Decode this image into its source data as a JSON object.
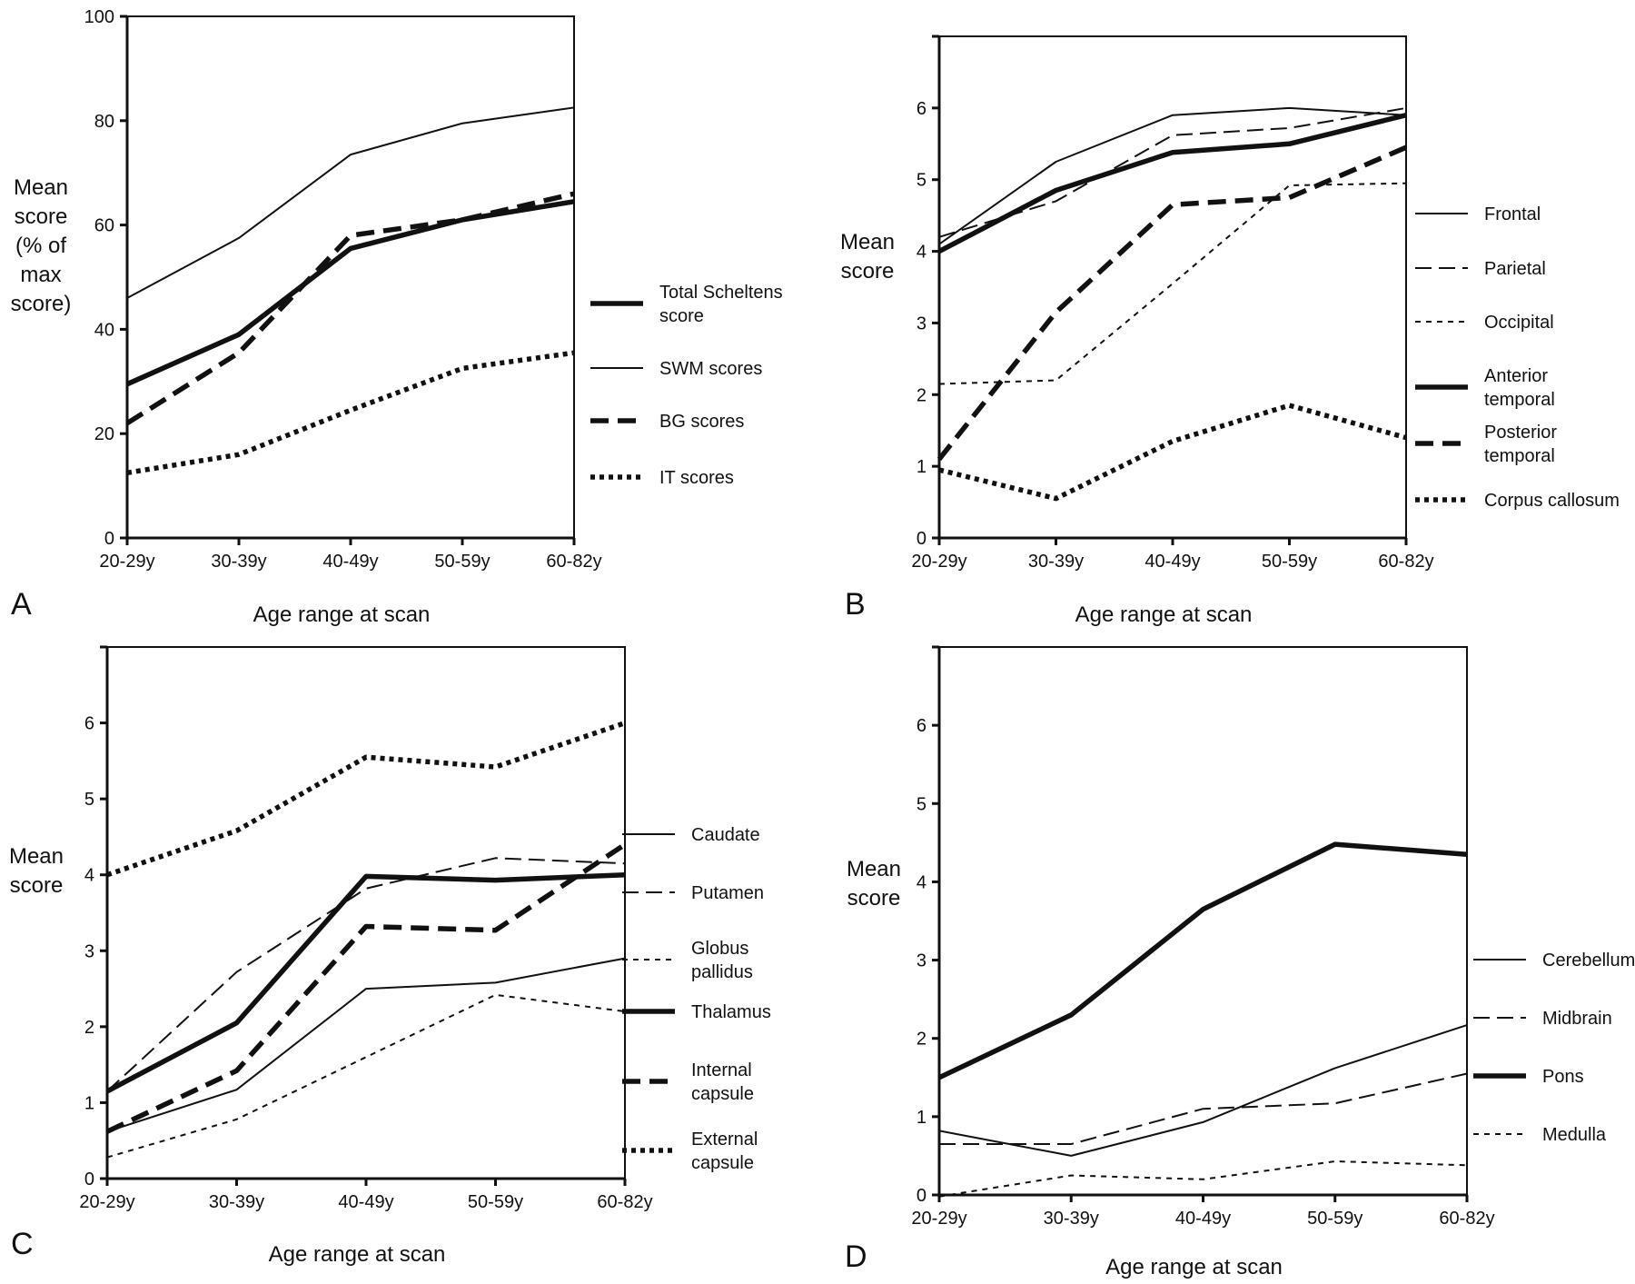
{
  "figure": {
    "xlabel": "Age range at scan",
    "categories": [
      "20-29y",
      "30-39y",
      "40-49y",
      "50-59y",
      "60-82y"
    ]
  },
  "chart_data": [
    {
      "panel": "A",
      "type": "line",
      "categories": [
        "20-29y",
        "30-39y",
        "40-49y",
        "50-59y",
        "60-82y"
      ],
      "ylabel_lines": [
        "Mean",
        "score",
        "(% of",
        "max",
        "score)"
      ],
      "xlabel": "Age range at scan",
      "ylim": [
        0,
        100
      ],
      "yticks": [
        0,
        20,
        40,
        60,
        80,
        100
      ],
      "legend_placement": "right",
      "series": [
        {
          "name": "Total Scheltens score",
          "name_lines": [
            "Total Scheltens",
            "score"
          ],
          "style": "thick-solid",
          "values": [
            29.5,
            39,
            55.5,
            61,
            64.5
          ]
        },
        {
          "name": "SWM scores",
          "name_lines": [
            "SWM scores"
          ],
          "style": "thin-solid",
          "values": [
            46,
            57.5,
            73.5,
            79.5,
            82.5
          ]
        },
        {
          "name": "BG scores",
          "name_lines": [
            "BG scores"
          ],
          "style": "thick-dash",
          "values": [
            22,
            35.5,
            58,
            61,
            66
          ]
        },
        {
          "name": "IT scores",
          "name_lines": [
            "IT scores"
          ],
          "style": "thick-dot",
          "values": [
            12.5,
            16,
            24.5,
            32.5,
            35.5
          ]
        }
      ]
    },
    {
      "panel": "B",
      "type": "line",
      "categories": [
        "20-29y",
        "30-39y",
        "40-49y",
        "50-59y",
        "60-82y"
      ],
      "ylabel_lines": [
        "Mean",
        "score"
      ],
      "xlabel": "Age range at scan",
      "ylim": [
        0,
        7
      ],
      "yticks": [
        0,
        1,
        2,
        3,
        4,
        5,
        6
      ],
      "legend_placement": "right",
      "series": [
        {
          "name": "Frontal",
          "name_lines": [
            "Frontal"
          ],
          "style": "thin-solid",
          "values": [
            4.1,
            5.25,
            5.9,
            6.0,
            5.9
          ]
        },
        {
          "name": "Parietal",
          "name_lines": [
            "Parietal"
          ],
          "style": "thin-dash",
          "values": [
            4.2,
            4.7,
            5.62,
            5.72,
            6.0
          ]
        },
        {
          "name": "Occipital",
          "name_lines": [
            "Occipital"
          ],
          "style": "thin-dot",
          "values": [
            2.15,
            2.2,
            3.55,
            4.92,
            4.95
          ]
        },
        {
          "name": "Anterior temporal",
          "name_lines": [
            "Anterior",
            "temporal"
          ],
          "style": "thick-solid",
          "values": [
            4.0,
            4.85,
            5.38,
            5.5,
            5.9
          ]
        },
        {
          "name": "Posterior temporal",
          "name_lines": [
            "Posterior",
            "temporal"
          ],
          "style": "thick-dash",
          "values": [
            1.1,
            3.15,
            4.65,
            4.75,
            5.45
          ]
        },
        {
          "name": "Corpus callosum",
          "name_lines": [
            "Corpus callosum"
          ],
          "style": "thick-dot",
          "values": [
            0.95,
            0.55,
            1.35,
            1.85,
            1.4
          ]
        }
      ]
    },
    {
      "panel": "C",
      "type": "line",
      "categories": [
        "20-29y",
        "30-39y",
        "40-49y",
        "50-59y",
        "60-82y"
      ],
      "ylabel_lines": [
        "Mean",
        "score"
      ],
      "xlabel": "Age range at scan",
      "ylim": [
        0,
        7
      ],
      "yticks": [
        0,
        1,
        2,
        3,
        4,
        5,
        6
      ],
      "legend_placement": "right",
      "series": [
        {
          "name": "Caudate",
          "name_lines": [
            "Caudate"
          ],
          "style": "thin-solid",
          "values": [
            0.62,
            1.17,
            2.5,
            2.58,
            2.9
          ]
        },
        {
          "name": "Putamen",
          "name_lines": [
            "Putamen"
          ],
          "style": "thin-dash",
          "values": [
            1.15,
            2.72,
            3.82,
            4.22,
            4.15
          ]
        },
        {
          "name": "Globus pallidus",
          "name_lines": [
            "Globus",
            "pallidus"
          ],
          "style": "thin-dot",
          "values": [
            0.28,
            0.78,
            1.6,
            2.42,
            2.2
          ]
        },
        {
          "name": "Thalamus",
          "name_lines": [
            "Thalamus"
          ],
          "style": "thick-solid",
          "values": [
            1.15,
            2.05,
            3.98,
            3.93,
            4.0
          ]
        },
        {
          "name": "Internal capsule",
          "name_lines": [
            "Internal",
            "capsule"
          ],
          "style": "thick-dash",
          "values": [
            0.62,
            1.42,
            3.32,
            3.27,
            4.4
          ]
        },
        {
          "name": "External capsule",
          "name_lines": [
            "External",
            "capsule"
          ],
          "style": "thick-dot",
          "values": [
            4.0,
            4.58,
            5.55,
            5.42,
            6.0
          ]
        }
      ]
    },
    {
      "panel": "D",
      "type": "line",
      "categories": [
        "20-29y",
        "30-39y",
        "40-49y",
        "50-59y",
        "60-82y"
      ],
      "ylabel_lines": [
        "Mean",
        "score"
      ],
      "xlabel": "Age range at scan",
      "ylim": [
        0,
        7
      ],
      "yticks": [
        0,
        1,
        2,
        3,
        4,
        5,
        6
      ],
      "legend_placement": "right",
      "series": [
        {
          "name": "Cerebellum",
          "name_lines": [
            "Cerebellum"
          ],
          "style": "thin-solid",
          "values": [
            0.82,
            0.5,
            0.93,
            1.62,
            2.17
          ]
        },
        {
          "name": "Midbrain",
          "name_lines": [
            "Midbrain"
          ],
          "style": "thin-dash",
          "values": [
            0.65,
            0.65,
            1.1,
            1.17,
            1.55
          ]
        },
        {
          "name": "Pons",
          "name_lines": [
            "Pons"
          ],
          "style": "thick-solid",
          "values": [
            1.5,
            2.3,
            3.65,
            4.48,
            4.35
          ]
        },
        {
          "name": "Medulla",
          "name_lines": [
            "Medulla"
          ],
          "style": "thin-dot",
          "values": [
            -0.02,
            0.25,
            0.2,
            0.43,
            0.38
          ]
        }
      ]
    }
  ]
}
